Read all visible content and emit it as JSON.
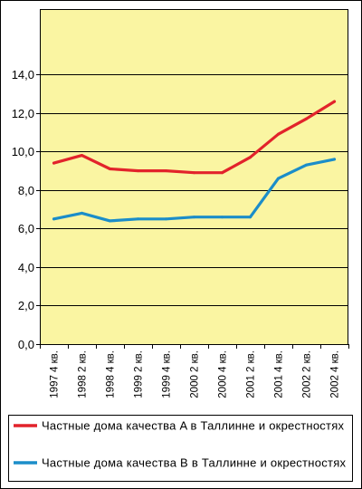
{
  "chart_data": {
    "type": "line",
    "categories": [
      "1997 4 кв.",
      "1998 2 кв.",
      "1998 4 кв.",
      "1999 2 кв.",
      "1999 4 кв.",
      "2000 2 кв.",
      "2000 4 кв.",
      "2001 2 кв.",
      "2001 4 кв.",
      "2002 2 кв.",
      "2002 4 кв."
    ],
    "series": [
      {
        "name": "Частные дома качества A в Таллинне и окрестностях",
        "color": "#e2232b",
        "values": [
          9.4,
          9.8,
          9.1,
          9.0,
          9.0,
          8.9,
          8.9,
          9.7,
          10.9,
          11.7,
          12.6
        ]
      },
      {
        "name": "Частные дома качества B в Таллинне и окрестностях",
        "color": "#1b8dc9",
        "values": [
          6.5,
          6.8,
          6.4,
          6.5,
          6.5,
          6.6,
          6.6,
          6.6,
          8.6,
          9.3,
          9.6
        ]
      }
    ],
    "ylim": [
      0,
      17.4
    ],
    "yticks": [
      0,
      2,
      4,
      6,
      8,
      10,
      12,
      14
    ],
    "ytick_labels": [
      "0,0",
      "2,0",
      "4,0",
      "6,0",
      "8,0",
      "10,0",
      "12,0",
      "14,0"
    ],
    "grid": true,
    "legend": "bottom",
    "plot_background": "#faf5a2"
  }
}
